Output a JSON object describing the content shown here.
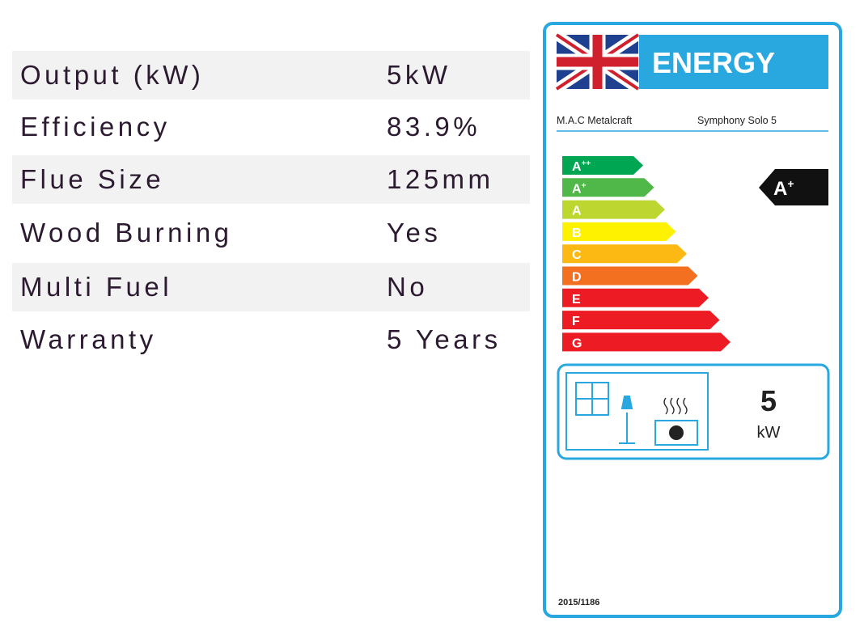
{
  "specs": {
    "rows": [
      [
        "Output (kW)",
        "5kW"
      ],
      [
        "Efficiency",
        "83.9%"
      ],
      [
        "Flue Size",
        "125mm"
      ],
      [
        "Wood Burning",
        "Yes"
      ],
      [
        "Multi Fuel",
        "No"
      ],
      [
        "Warranty",
        "5 Years"
      ]
    ]
  },
  "label": {
    "title": "ENERGY",
    "supplier": "M.A.C Metalcraft",
    "model": "Symphony Solo 5",
    "classes": [
      {
        "letter": "A",
        "sup": "++"
      },
      {
        "letter": "A",
        "sup": "+"
      },
      {
        "letter": "A"
      },
      {
        "letter": "B"
      },
      {
        "letter": "C"
      },
      {
        "letter": "D"
      },
      {
        "letter": "E"
      },
      {
        "letter": "F"
      },
      {
        "letter": "G"
      }
    ],
    "rating": {
      "letter": "A",
      "sup": "+"
    },
    "output": "5",
    "unit": "kW",
    "regulation": "2015/1186"
  }
}
